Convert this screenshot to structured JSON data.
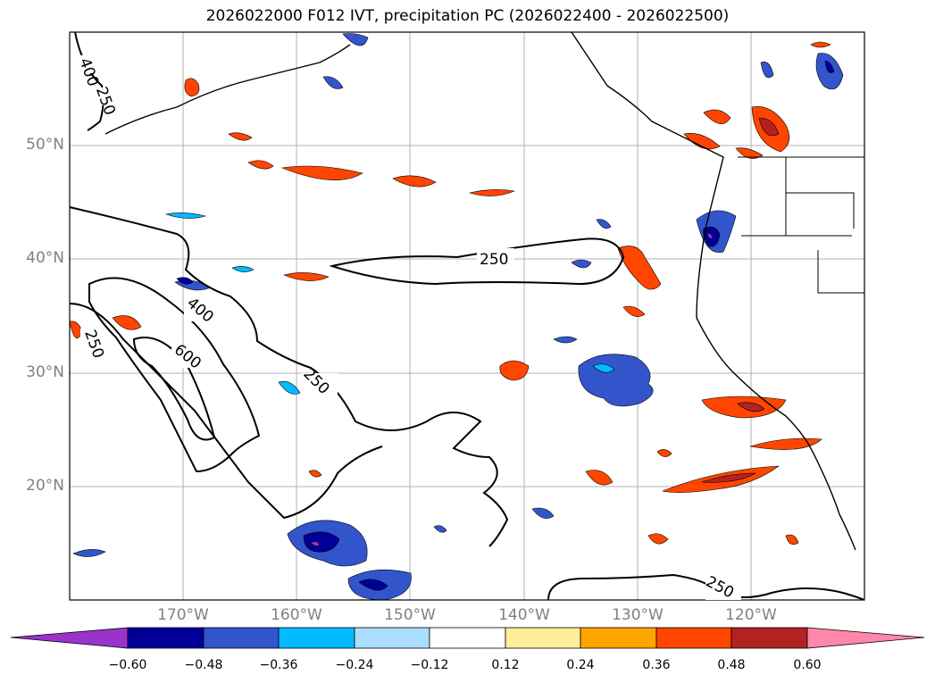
{
  "title": "2026022000 F012 IVT, precipitation PC (2026022400 - 2026022500)",
  "lat_labels": [
    "50°N",
    "40°N",
    "30°N",
    "20°N"
  ],
  "lon_labels": [
    "170°W",
    "160°W",
    "150°W",
    "140°W",
    "130°W",
    "120°W"
  ],
  "contour_labels": [
    "400",
    "250",
    "250",
    "400",
    "600",
    "250",
    "250",
    "250"
  ],
  "colorbar": {
    "ticks": [
      "−0.60",
      "−0.48",
      "−0.36",
      "−0.24",
      "−0.12",
      "0.12",
      "0.24",
      "0.36",
      "0.48",
      "0.60"
    ],
    "colors": [
      "#9933cc",
      "#000099",
      "#3355cc",
      "#00bbff",
      "#aaddff",
      "#ffffff",
      "#ffee99",
      "#ffa500",
      "#ff4500",
      "#b22222",
      "#ff88aa"
    ]
  },
  "colors": {
    "contour": "#000000",
    "grid": "#b0b0b0",
    "axis_label": "#808080"
  }
}
